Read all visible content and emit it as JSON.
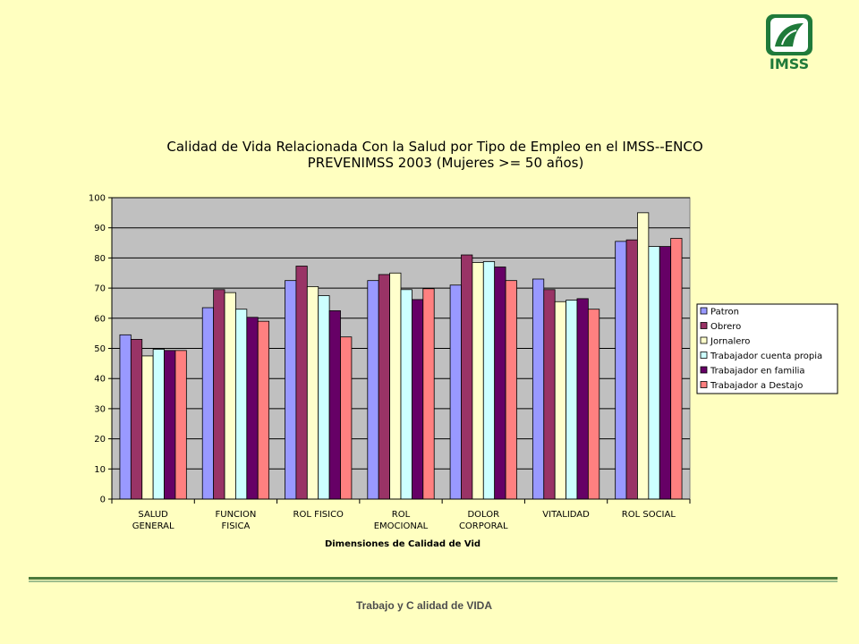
{
  "logo": {
    "text": "IMSS",
    "color": "#1f7a3a"
  },
  "chart_data": {
    "type": "bar",
    "title_lines": [
      "Calidad de Vida Relacionada Con la Salud por Tipo de Empleo en el IMSS--ENCO",
      "PREVENIMSS 2003 (Mujeres >= 50 años)"
    ],
    "xlabel": "Dimensiones de Calidad de Vid",
    "ylabel": "",
    "ylim": [
      0,
      100
    ],
    "yticks": [
      0,
      10,
      20,
      30,
      40,
      50,
      60,
      70,
      80,
      90,
      100
    ],
    "grid": true,
    "legend_position": "right",
    "categories": [
      [
        "SALUD",
        "GENERAL"
      ],
      [
        "FUNCION",
        "FISICA"
      ],
      [
        "ROL FISICO"
      ],
      [
        "ROL",
        "EMOCIONAL"
      ],
      [
        "DOLOR",
        "CORPORAL"
      ],
      [
        "VITALIDAD"
      ],
      [
        "ROL SOCIAL"
      ]
    ],
    "series": [
      {
        "name": "Patron",
        "color": "#9999ff",
        "values": [
          54.5,
          63.5,
          72.5,
          72.5,
          71,
          73,
          85.5
        ]
      },
      {
        "name": "Obrero",
        "color": "#993366",
        "values": [
          53,
          69.5,
          77.3,
          74.5,
          81,
          69.5,
          86
        ]
      },
      {
        "name": "Jornalero",
        "color": "#ffffcc",
        "values": [
          47.5,
          68.5,
          70.5,
          75,
          78.5,
          65.5,
          95
        ]
      },
      {
        "name": "Trabajador cuenta propia",
        "color": "#ccffff",
        "values": [
          49.7,
          63,
          67.5,
          69.5,
          78.8,
          66,
          83.8
        ]
      },
      {
        "name": "Trabajador en familia",
        "color": "#660066",
        "values": [
          49.3,
          60.3,
          62.5,
          66.2,
          77,
          66.5,
          83.8
        ]
      },
      {
        "name": "Trabajador a Destajo",
        "color": "#ff8080",
        "values": [
          49.3,
          59,
          53.8,
          69.8,
          72.5,
          63,
          86.5
        ]
      }
    ]
  },
  "footer": {
    "text": "Trabajo y C alidad de VIDA"
  }
}
